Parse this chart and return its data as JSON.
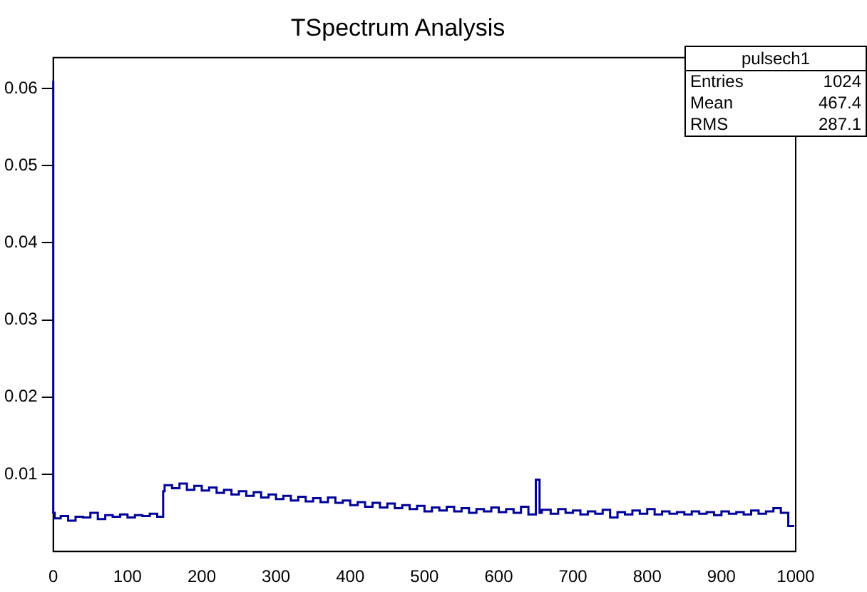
{
  "chart_data": {
    "type": "step",
    "title": "TSpectrum Analysis",
    "annotations": [
      "pulsech1",
      "Entries",
      "1024",
      "Mean",
      "467.4",
      "RMS",
      "287.1"
    ],
    "x": [
      0,
      2,
      10,
      20,
      30,
      40,
      50,
      60,
      70,
      80,
      90,
      100,
      110,
      120,
      130,
      140,
      148,
      150,
      160,
      170,
      180,
      190,
      200,
      210,
      220,
      230,
      240,
      250,
      260,
      270,
      280,
      290,
      300,
      310,
      320,
      330,
      340,
      350,
      360,
      370,
      380,
      390,
      400,
      410,
      420,
      430,
      440,
      450,
      460,
      470,
      480,
      490,
      500,
      510,
      520,
      530,
      540,
      550,
      560,
      570,
      580,
      590,
      600,
      610,
      620,
      630,
      640,
      650,
      655,
      658,
      670,
      680,
      690,
      700,
      710,
      720,
      730,
      740,
      750,
      760,
      770,
      780,
      790,
      800,
      810,
      820,
      830,
      840,
      850,
      860,
      870,
      880,
      890,
      900,
      910,
      920,
      930,
      940,
      950,
      960,
      970,
      980,
      990,
      998
    ],
    "series": [
      {
        "color": "#000099",
        "values": [
          0.061,
          0.005,
          0.0043,
          0.0046,
          0.004,
          0.0045,
          0.0044,
          0.005,
          0.0042,
          0.0047,
          0.0045,
          0.0048,
          0.0044,
          0.0047,
          0.0046,
          0.0049,
          0.0045,
          0.0078,
          0.0086,
          0.0082,
          0.0088,
          0.008,
          0.0085,
          0.0079,
          0.0083,
          0.0076,
          0.008,
          0.0074,
          0.0078,
          0.0072,
          0.0077,
          0.007,
          0.0074,
          0.0068,
          0.0072,
          0.0066,
          0.0071,
          0.0065,
          0.0069,
          0.0064,
          0.007,
          0.0063,
          0.0066,
          0.006,
          0.0064,
          0.0058,
          0.0063,
          0.0057,
          0.0062,
          0.0056,
          0.006,
          0.0055,
          0.0059,
          0.0052,
          0.0057,
          0.0053,
          0.0058,
          0.0052,
          0.0056,
          0.005,
          0.0055,
          0.0052,
          0.0057,
          0.0051,
          0.0055,
          0.005,
          0.0058,
          0.0048,
          0.0093,
          0.005,
          0.0054,
          0.0049,
          0.0055,
          0.005,
          0.0053,
          0.0048,
          0.0052,
          0.0049,
          0.0054,
          0.0044,
          0.0051,
          0.0048,
          0.0053,
          0.0049,
          0.0055,
          0.0048,
          0.0052,
          0.0049,
          0.0051,
          0.0048,
          0.0052,
          0.0049,
          0.0051,
          0.0047,
          0.0052,
          0.0049,
          0.0051,
          0.0048,
          0.0053,
          0.0049,
          0.0052,
          0.0056,
          0.005,
          0.0033
        ]
      }
    ],
    "xlim": [
      0,
      1000
    ],
    "xticks": [
      0,
      100,
      200,
      300,
      400,
      500,
      600,
      700,
      800,
      900,
      1000
    ],
    "ylim": [
      0,
      0.064
    ],
    "yticks": [
      0.01,
      0.02,
      0.03,
      0.04,
      0.05,
      0.06
    ],
    "grid": false,
    "legend": false
  }
}
